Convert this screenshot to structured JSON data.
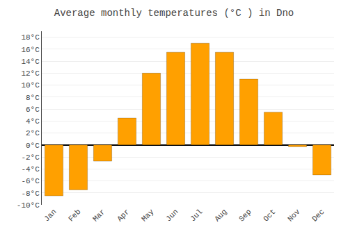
{
  "chart_data": {
    "type": "bar",
    "title": "Average monthly temperatures (°C ) in Dno",
    "categories": [
      "Jan",
      "Feb",
      "Mar",
      "Apr",
      "May",
      "Jun",
      "Jul",
      "Aug",
      "Sep",
      "Oct",
      "Nov",
      "Dec"
    ],
    "values": [
      -8.5,
      -7.5,
      -2.7,
      4.5,
      12.0,
      15.5,
      17.0,
      15.5,
      11.0,
      5.5,
      -0.3,
      -5.0
    ],
    "color": "#FFA000",
    "ylim": [
      -10,
      19
    ],
    "yticks": [
      {
        "value": -10,
        "label": "-10°C"
      },
      {
        "value": -8,
        "label": "-8°C"
      },
      {
        "value": -6,
        "label": "-6°C"
      },
      {
        "value": -4,
        "label": "-4°C"
      },
      {
        "value": -2,
        "label": "-2°C"
      },
      {
        "value": 0,
        "label": "0°C"
      },
      {
        "value": 2,
        "label": "2°C"
      },
      {
        "value": 4,
        "label": "4°C"
      },
      {
        "value": 6,
        "label": "6°C"
      },
      {
        "value": 8,
        "label": "8°C"
      },
      {
        "value": 10,
        "label": "10°C"
      },
      {
        "value": 12,
        "label": "12°C"
      },
      {
        "value": 14,
        "label": "14°C"
      },
      {
        "value": 16,
        "label": "16°C"
      },
      {
        "value": 18,
        "label": "18°C"
      }
    ],
    "grid": true
  }
}
